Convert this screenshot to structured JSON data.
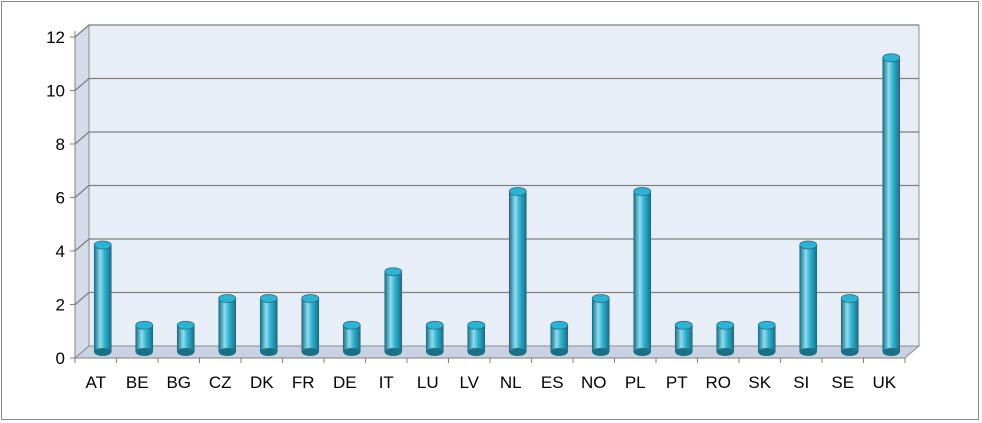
{
  "chart_data": {
    "type": "bar",
    "title": "",
    "xlabel": "",
    "ylabel": "",
    "categories": [
      "AT",
      "BE",
      "BG",
      "CZ",
      "DK",
      "FR",
      "DE",
      "IT",
      "LU",
      "LV",
      "NL",
      "ES",
      "NO",
      "PL",
      "PT",
      "RO",
      "SK",
      "SI",
      "SE",
      "UK"
    ],
    "values": [
      4,
      1,
      1,
      2,
      2,
      2,
      1,
      3,
      1,
      1,
      6,
      1,
      2,
      6,
      1,
      1,
      1,
      4,
      2,
      11
    ],
    "ylim": [
      0,
      12
    ],
    "yticks": [
      "0",
      "2",
      "4",
      "6",
      "8",
      "10",
      "12"
    ],
    "grid": true,
    "legend": "none",
    "style": "3d-cylinder",
    "colors": {
      "bar_light": "#8fdcef",
      "bar_mid": "#31b2d2",
      "bar_dark": "#1b6f86",
      "plot_back": "#e8eef8",
      "plot_floor": "#c8d2e3",
      "gridline": "#7f7f7f"
    }
  }
}
